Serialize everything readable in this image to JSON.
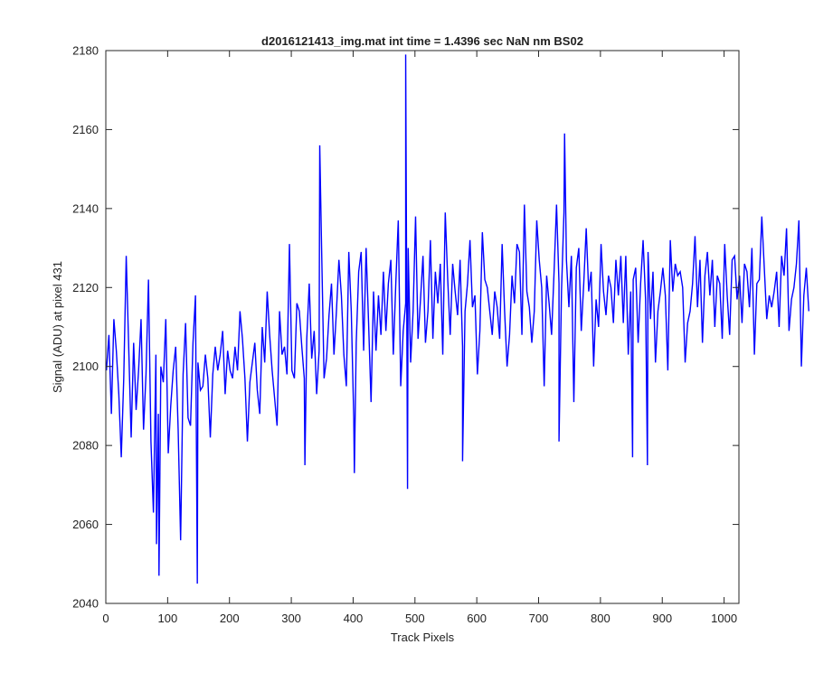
{
  "chart_data": {
    "type": "line",
    "title": "d2016121413_img.mat int time = 1.4396 sec  NaN nm BS02",
    "xlabel": "Track Pixels",
    "ylabel": "Signal (ADU) at pixel 431",
    "xlim": [
      0,
      1024
    ],
    "ylim": [
      2040,
      2180
    ],
    "xticks": [
      0,
      100,
      200,
      300,
      400,
      500,
      600,
      700,
      800,
      900,
      1000
    ],
    "yticks": [
      2040,
      2060,
      2080,
      2100,
      2120,
      2140,
      2160,
      2180
    ],
    "grid": false,
    "line_color": "#0000ff",
    "series": [
      {
        "name": "",
        "x_start": 1,
        "x_step": 4,
        "values": [
          2099,
          2108,
          2088,
          2112,
          2104,
          2093,
          2077,
          2097,
          2128,
          2105,
          2082,
          2106,
          2089,
          2099,
          2112,
          2084,
          2098,
          2122,
          2081,
          2063,
          2103,
          2088,
          2100,
          2096,
          2112,
          2078,
          2090,
          2099,
          2105,
          2084,
          2056,
          2098,
          2111,
          2087,
          2085,
          2106,
          2118,
          2101,
          2094,
          2095,
          2103,
          2097,
          2082,
          2098,
          2105,
          2099,
          2103,
          2109,
          2093,
          2104,
          2099,
          2097,
          2105,
          2099,
          2114,
          2107,
          2097,
          2081,
          2096,
          2101,
          2106,
          2094,
          2088,
          2110,
          2101,
          2119,
          2108,
          2099,
          2092,
          2085,
          2114,
          2103,
          2105,
          2098,
          2131,
          2099,
          2097,
          2116,
          2114,
          2105,
          2097,
          2107,
          2121,
          2102,
          2109,
          2093,
          2104,
          2130,
          2097,
          2102,
          2113,
          2121,
          2103,
          2114,
          2127,
          2118,
          2103,
          2095,
          2129,
          2114,
          2087,
          2106,
          2124,
          2129,
          2104,
          2130,
          2111,
          2091,
          2119,
          2104,
          2118,
          2108,
          2124,
          2109,
          2121,
          2127,
          2103,
          2121,
          2137,
          2095,
          2109,
          2116,
          2130,
          2101,
          2114,
          2138,
          2107,
          2117,
          2128,
          2106,
          2114,
          2132,
          2107,
          2124,
          2116,
          2126,
          2103,
          2139,
          2122,
          2108,
          2126,
          2119,
          2113,
          2127,
          2105,
          2114,
          2121,
          2132,
          2115,
          2118,
          2098,
          2109,
          2134,
          2122,
          2120,
          2114,
          2108,
          2119,
          2115,
          2107,
          2131,
          2114,
          2100,
          2108,
          2123,
          2116,
          2131,
          2129,
          2108,
          2141,
          2119,
          2115,
          2106,
          2114,
          2137,
          2127,
          2120,
          2095,
          2123,
          2116,
          2108,
          2124,
          2141,
          2121,
          2119,
          2139,
          2127,
          2115,
          2128,
          2091,
          2125,
          2130,
          2109,
          2121,
          2135,
          2119,
          2124,
          2100,
          2117,
          2110,
          2131,
          2119,
          2113,
          2123,
          2120,
          2111,
          2127,
          2118,
          2128,
          2111,
          2128,
          2103,
          2119,
          2122,
          2125,
          2106,
          2121,
          2132,
          2117,
          2129,
          2112,
          2124,
          2101,
          2114,
          2119,
          2125,
          2118,
          2099,
          2132,
          2119,
          2126,
          2123,
          2124,
          2120,
          2101,
          2111,
          2114,
          2121,
          2133,
          2115,
          2127,
          2106,
          2123,
          2129,
          2118,
          2127,
          2110,
          2123,
          2121,
          2107,
          2131,
          2118,
          2108,
          2127,
          2128,
          2117,
          2123,
          2111,
          2126,
          2124,
          2115,
          2130,
          2103,
          2121,
          2122,
          2138,
          2125,
          2112,
          2118,
          2115,
          2119,
          2124,
          2110,
          2128,
          2123,
          2135,
          2109,
          2117,
          2120,
          2126,
          2137,
          2100,
          2118,
          2125,
          2114
        ]
      }
    ],
    "extremes": [
      {
        "x": 485,
        "value": 2179
      },
      {
        "x": 488,
        "value": 2069
      },
      {
        "x": 148,
        "value": 2045
      },
      {
        "x": 86,
        "value": 2047
      },
      {
        "x": 82,
        "value": 2055
      },
      {
        "x": 742,
        "value": 2159
      },
      {
        "x": 346,
        "value": 2156
      },
      {
        "x": 402,
        "value": 2073
      },
      {
        "x": 322,
        "value": 2075
      },
      {
        "x": 577,
        "value": 2076
      },
      {
        "x": 876,
        "value": 2075
      },
      {
        "x": 852,
        "value": 2077
      },
      {
        "x": 733,
        "value": 2081
      }
    ]
  }
}
